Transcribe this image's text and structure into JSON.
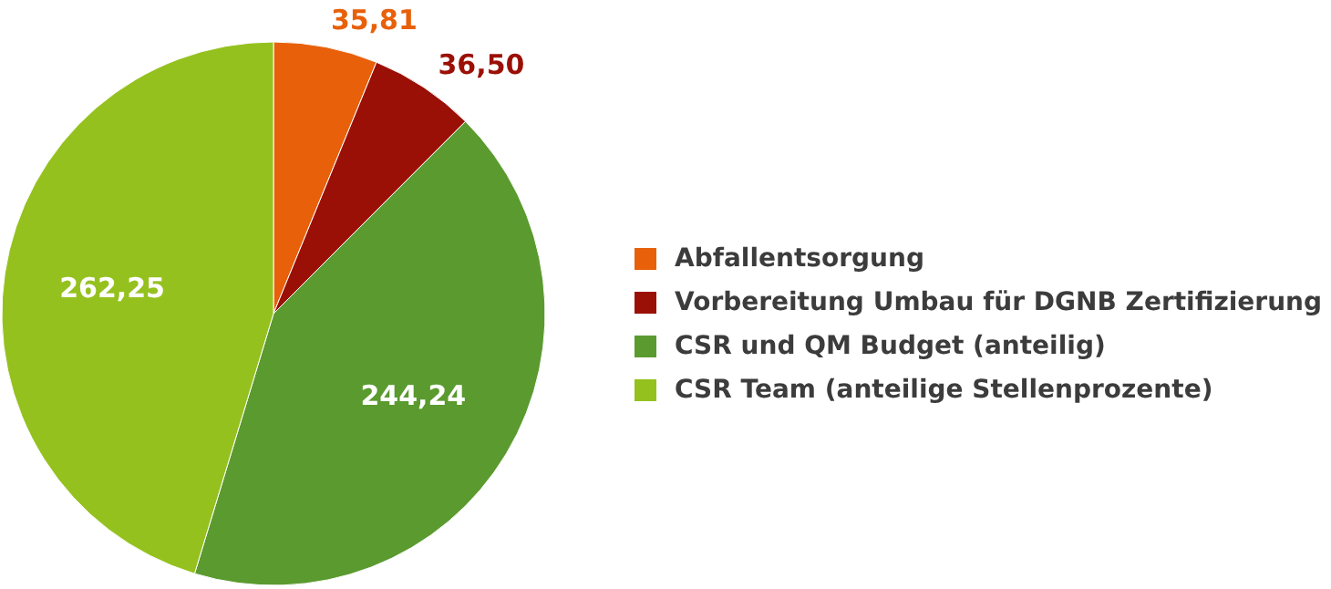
{
  "chart_data": {
    "type": "pie",
    "categories": [
      "Abfallentsorgung",
      "Vorbereitung Umbau für DGNB Zertifizierung",
      "CSR und QM Budget (anteilig)",
      "CSR Team (anteilige Stellenprozente)"
    ],
    "values": [
      35.81,
      36.5,
      244.24,
      262.25
    ],
    "colors": [
      "#e8600a",
      "#9b1006",
      "#5a9a2f",
      "#95c11f"
    ],
    "value_labels": [
      "35,81",
      "36,50",
      "244,24",
      "262,25"
    ],
    "legend": "right"
  }
}
